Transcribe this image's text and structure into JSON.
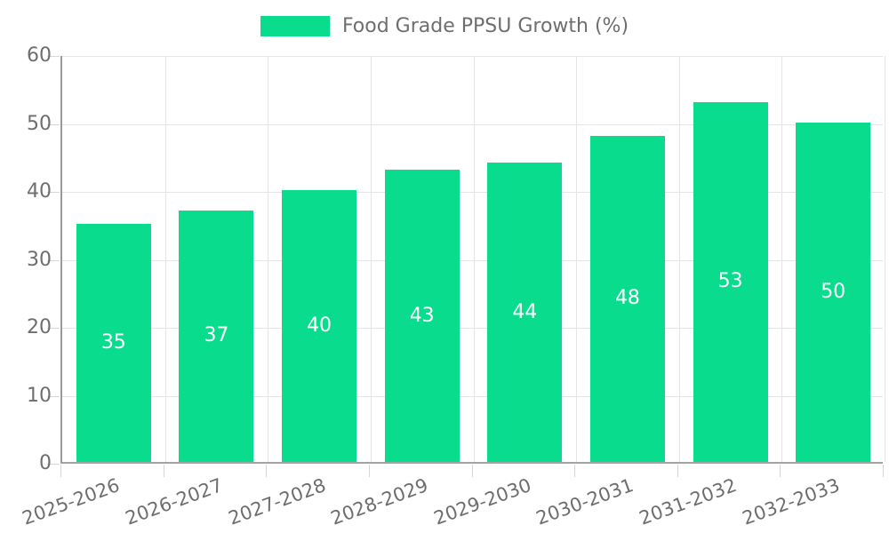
{
  "chart_data": {
    "type": "bar",
    "title": "",
    "legend": "Food Grade PPSU Growth (%)",
    "legend_position": "top-center",
    "categories": [
      "2025-2026",
      "2026-2027",
      "2027-2028",
      "2028-2029",
      "2029-2030",
      "2030-2031",
      "2031-2032",
      "2032-2033"
    ],
    "values": [
      35,
      37,
      40,
      43,
      44,
      48,
      53,
      50
    ],
    "xlabel": "",
    "ylabel": "",
    "ylim": [
      0,
      60
    ],
    "ytick_step": 10,
    "yticks": [
      0,
      10,
      20,
      30,
      40,
      50,
      60
    ],
    "grid": "on",
    "bar_color": "#0adc8e",
    "bar_value_label_color": "#ffffff",
    "axis_text_color": "#6e6e6e",
    "gridline_color": "#e5e5e5",
    "x_label_rotation_deg": -20
  }
}
